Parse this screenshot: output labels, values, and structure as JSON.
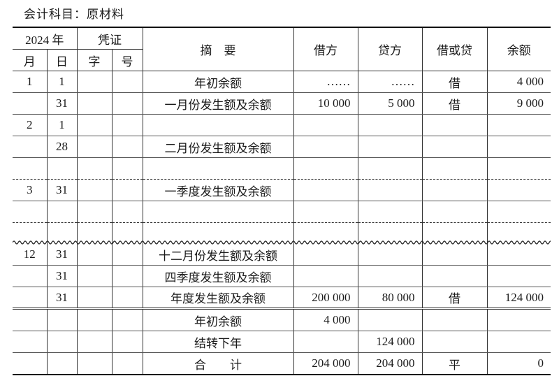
{
  "account_title": "会计科目：原材料",
  "header": {
    "year": "2024 年",
    "voucher": "凭证",
    "summary": "摘　要",
    "debit": "借方",
    "credit": "贷方",
    "direction": "借或贷",
    "balance": "余额",
    "month": "月",
    "day": "日",
    "voucher_type": "字",
    "voucher_no": "号"
  },
  "rows": [
    {
      "month": "1",
      "day": "1",
      "summary": "年初余额",
      "debit": "……",
      "credit": "……",
      "direction": "借",
      "balance": "4 000"
    },
    {
      "month": "",
      "day": "31",
      "summary": "一月份发生额及余额",
      "debit": "10 000",
      "credit": "5 000",
      "direction": "借",
      "balance": "9 000"
    },
    {
      "month": "2",
      "day": "1",
      "summary": "",
      "debit": "",
      "credit": "",
      "direction": "",
      "balance": ""
    },
    {
      "month": "",
      "day": "28",
      "summary": "二月份发生额及余额",
      "debit": "",
      "credit": "",
      "direction": "",
      "balance": ""
    },
    {
      "month": "",
      "day": "",
      "summary": "",
      "debit": "",
      "credit": "",
      "direction": "",
      "balance": ""
    },
    {
      "month": "3",
      "day": "31",
      "summary": "一季度发生额及余额",
      "debit": "",
      "credit": "",
      "direction": "",
      "balance": ""
    },
    {
      "month": "",
      "day": "",
      "summary": "",
      "debit": "",
      "credit": "",
      "direction": "",
      "balance": ""
    },
    {
      "month": "",
      "day": "",
      "summary": "",
      "debit": "",
      "credit": "",
      "direction": "",
      "balance": ""
    },
    {
      "month": "12",
      "day": "31",
      "summary": "十二月份发生额及余额",
      "debit": "",
      "credit": "",
      "direction": "",
      "balance": ""
    },
    {
      "month": "",
      "day": "31",
      "summary": "四季度发生额及余额",
      "debit": "",
      "credit": "",
      "direction": "",
      "balance": ""
    },
    {
      "month": "",
      "day": "31",
      "summary": "年度发生额及余额",
      "debit": "200 000",
      "credit": "80 000",
      "direction": "借",
      "balance": "124 000"
    },
    {
      "month": "",
      "day": "",
      "summary": "年初余额",
      "debit": "4 000",
      "credit": "",
      "direction": "",
      "balance": ""
    },
    {
      "month": "",
      "day": "",
      "summary": "结转下年",
      "debit": "",
      "credit": "124 000",
      "direction": "",
      "balance": ""
    },
    {
      "month": "",
      "day": "",
      "summary": "合　　计",
      "debit": "204 000",
      "credit": "204 000",
      "direction": "平",
      "balance": "0"
    }
  ]
}
